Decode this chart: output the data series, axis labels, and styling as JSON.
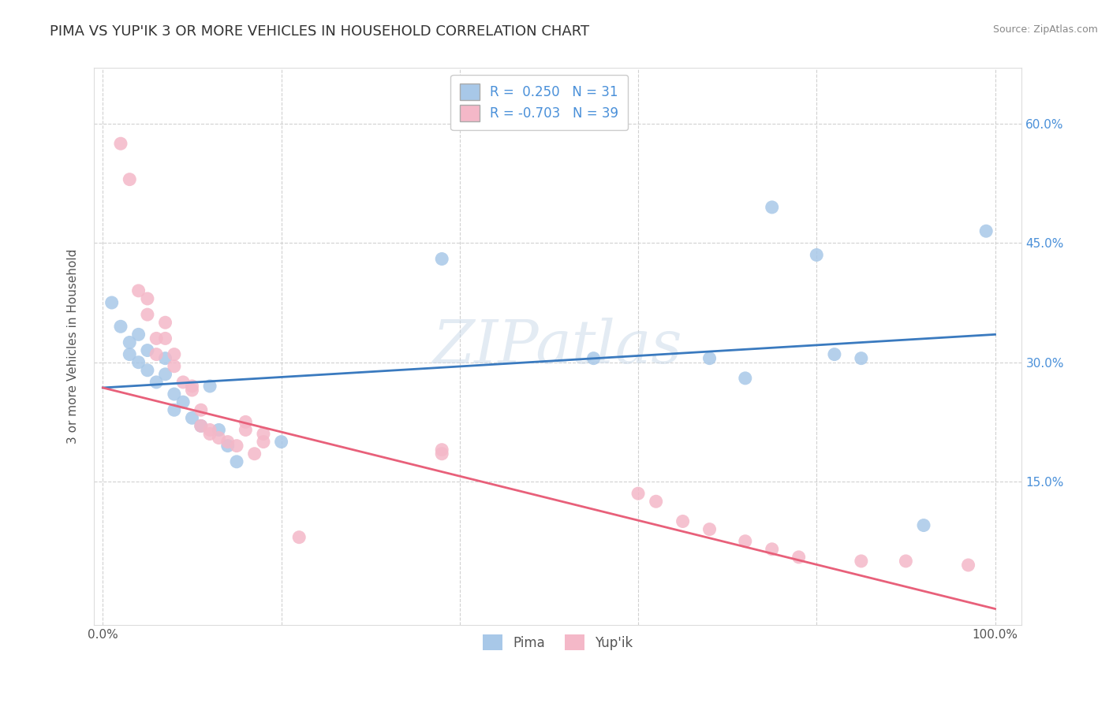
{
  "title": "PIMA VS YUP'IK 3 OR MORE VEHICLES IN HOUSEHOLD CORRELATION CHART",
  "source": "Source: ZipAtlas.com",
  "ylabel": "3 or more Vehicles in Household",
  "xlabel": "",
  "xlim": [
    -0.01,
    1.03
  ],
  "ylim": [
    -0.03,
    0.67
  ],
  "xticks": [
    0.0,
    0.2,
    0.4,
    0.6,
    0.8,
    1.0
  ],
  "xtick_labels": [
    "0.0%",
    "",
    "",
    "",
    "",
    "100.0%"
  ],
  "yticks": [
    0.15,
    0.3,
    0.45,
    0.6
  ],
  "ytick_labels": [
    "15.0%",
    "30.0%",
    "45.0%",
    "60.0%"
  ],
  "pima_color": "#a8c8e8",
  "yupik_color": "#f4b8c8",
  "pima_line_color": "#3a7abf",
  "yupik_line_color": "#e8607a",
  "R_pima": 0.25,
  "N_pima": 31,
  "R_yupik": -0.703,
  "N_yupik": 39,
  "watermark": "ZIPatlas",
  "background_color": "#ffffff",
  "grid_color": "#cccccc",
  "pima_scatter": [
    [
      0.01,
      0.375
    ],
    [
      0.02,
      0.345
    ],
    [
      0.03,
      0.325
    ],
    [
      0.03,
      0.31
    ],
    [
      0.04,
      0.335
    ],
    [
      0.04,
      0.3
    ],
    [
      0.05,
      0.315
    ],
    [
      0.05,
      0.29
    ],
    [
      0.06,
      0.275
    ],
    [
      0.07,
      0.305
    ],
    [
      0.07,
      0.285
    ],
    [
      0.08,
      0.26
    ],
    [
      0.08,
      0.24
    ],
    [
      0.09,
      0.25
    ],
    [
      0.1,
      0.23
    ],
    [
      0.11,
      0.22
    ],
    [
      0.12,
      0.27
    ],
    [
      0.13,
      0.215
    ],
    [
      0.14,
      0.195
    ],
    [
      0.15,
      0.175
    ],
    [
      0.2,
      0.2
    ],
    [
      0.38,
      0.43
    ],
    [
      0.55,
      0.305
    ],
    [
      0.68,
      0.305
    ],
    [
      0.72,
      0.28
    ],
    [
      0.75,
      0.495
    ],
    [
      0.8,
      0.435
    ],
    [
      0.82,
      0.31
    ],
    [
      0.85,
      0.305
    ],
    [
      0.92,
      0.095
    ],
    [
      0.99,
      0.465
    ]
  ],
  "yupik_scatter": [
    [
      0.02,
      0.575
    ],
    [
      0.03,
      0.53
    ],
    [
      0.04,
      0.39
    ],
    [
      0.05,
      0.38
    ],
    [
      0.05,
      0.36
    ],
    [
      0.06,
      0.33
    ],
    [
      0.06,
      0.31
    ],
    [
      0.07,
      0.35
    ],
    [
      0.07,
      0.33
    ],
    [
      0.08,
      0.31
    ],
    [
      0.08,
      0.295
    ],
    [
      0.09,
      0.275
    ],
    [
      0.1,
      0.27
    ],
    [
      0.1,
      0.265
    ],
    [
      0.11,
      0.24
    ],
    [
      0.11,
      0.22
    ],
    [
      0.12,
      0.215
    ],
    [
      0.12,
      0.21
    ],
    [
      0.13,
      0.205
    ],
    [
      0.14,
      0.2
    ],
    [
      0.15,
      0.195
    ],
    [
      0.16,
      0.225
    ],
    [
      0.16,
      0.215
    ],
    [
      0.17,
      0.185
    ],
    [
      0.18,
      0.21
    ],
    [
      0.18,
      0.2
    ],
    [
      0.22,
      0.08
    ],
    [
      0.38,
      0.19
    ],
    [
      0.38,
      0.185
    ],
    [
      0.6,
      0.135
    ],
    [
      0.62,
      0.125
    ],
    [
      0.65,
      0.1
    ],
    [
      0.68,
      0.09
    ],
    [
      0.72,
      0.075
    ],
    [
      0.75,
      0.065
    ],
    [
      0.78,
      0.055
    ],
    [
      0.85,
      0.05
    ],
    [
      0.9,
      0.05
    ],
    [
      0.97,
      0.045
    ]
  ],
  "title_fontsize": 13,
  "label_fontsize": 11,
  "tick_fontsize": 11,
  "source_fontsize": 9
}
